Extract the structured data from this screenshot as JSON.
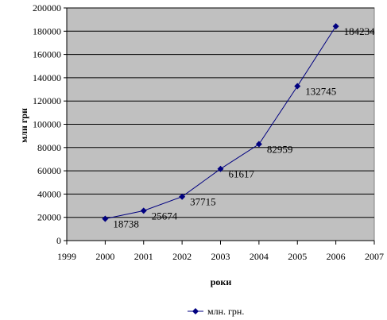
{
  "chart_data": {
    "type": "line",
    "x": [
      2000,
      2001,
      2002,
      2003,
      2004,
      2005,
      2006
    ],
    "series": [
      {
        "name": "млн. грн.",
        "values": [
          18738,
          25674,
          37715,
          61617,
          82959,
          132745,
          184234
        ],
        "labels": [
          "18738",
          "25674",
          "37715",
          "61617",
          "82959",
          "132745",
          "184234"
        ]
      }
    ],
    "xlabel": "роки",
    "ylabel": "млн грн",
    "xlim": [
      1999,
      2007
    ],
    "ylim": [
      0,
      200000
    ],
    "x_ticks": [
      "1999",
      "2000",
      "2001",
      "2002",
      "2003",
      "2004",
      "2005",
      "2006",
      "2007"
    ],
    "y_ticks": [
      "0",
      "20000",
      "40000",
      "60000",
      "80000",
      "100000",
      "120000",
      "140000",
      "160000",
      "180000",
      "200000"
    ],
    "grid": "horizontal",
    "legend_position": "bottom",
    "colors": {
      "plot_background": "#c0c0c0",
      "line": "#000080",
      "gridline": "#000000"
    }
  }
}
